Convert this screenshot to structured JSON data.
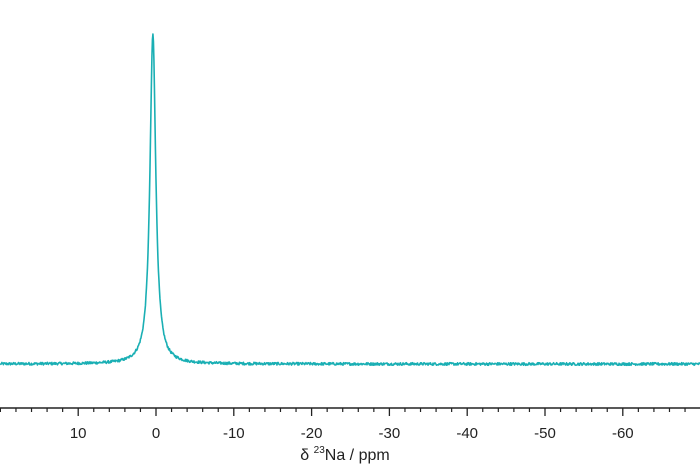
{
  "chart_data": {
    "type": "line",
    "title": "",
    "xlabel": {
      "prefix": "δ ",
      "superscript": "23",
      "nucleus": "Na",
      "suffix": " / ppm"
    },
    "ylabel": "",
    "x_axis_reversed": true,
    "xlim": [
      20,
      -70
    ],
    "x_ticks": [
      10,
      0,
      -10,
      -20,
      -30,
      -40,
      -50,
      -60
    ],
    "x_tick_labels": [
      "10",
      "0",
      "-10",
      "-20",
      "-30",
      "-40",
      "-50",
      "-60"
    ],
    "minor_tick_step": 2,
    "y_axis_visible": false,
    "grid": false,
    "series": [
      {
        "color": "#1aafb4",
        "peak": {
          "x": 0.4,
          "y": 1.0,
          "half_width": 0.45
        },
        "baseline": 0.0,
        "noise_level": 0.004
      }
    ]
  }
}
